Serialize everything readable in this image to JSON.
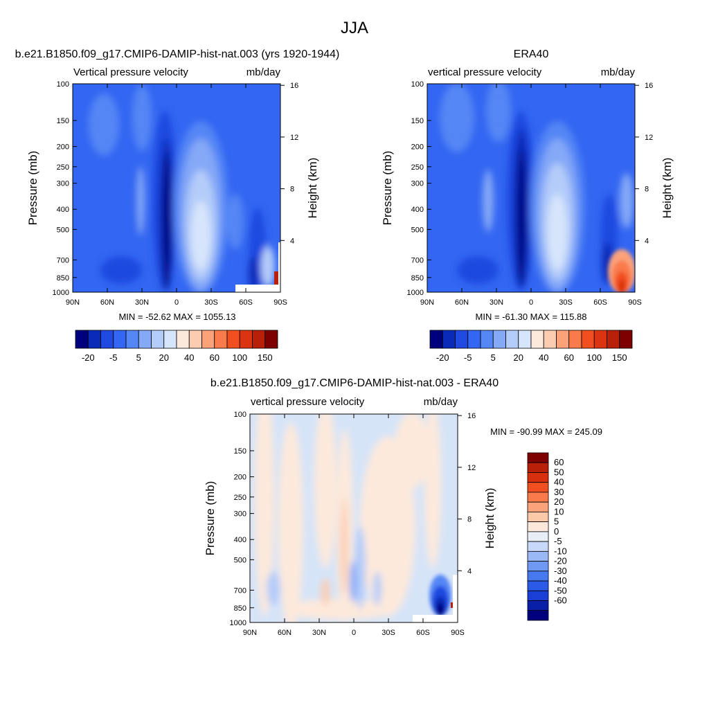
{
  "page": {
    "title": "JJA"
  },
  "colors": {
    "frame": "#000000",
    "background": "#ffffff",
    "blue_scale": [
      "#00007f",
      "#0a2bb8",
      "#1f49e0",
      "#3366f2",
      "#5586f5",
      "#85a8f7",
      "#b4ccf9",
      "#d7e5fb"
    ],
    "red_scale": [
      "#fde9db",
      "#fcccb0",
      "#fba27a",
      "#f97a4b",
      "#f14f20",
      "#dc3410",
      "#b8200a",
      "#7f0000"
    ],
    "diff_scale": [
      "#00007f",
      "#0a1fa8",
      "#1a3fd6",
      "#2c5ae8",
      "#4678ef",
      "#6f98f3",
      "#9ab8f6",
      "#c7d8fa",
      "#e8eef6",
      "#fde9db",
      "#fcc9a8",
      "#fba27a",
      "#f97a4b",
      "#f14f20",
      "#d8300e",
      "#b8200a",
      "#7f0000"
    ]
  },
  "chart_data": [
    {
      "type": "heatmap",
      "title": "b.e21.B1850.f09_g17.CMIP6-DAMIP-hist-nat.003 (yrs 1920-1944)",
      "left_label": "Vertical pressure velocity",
      "right_label": "mb/day",
      "ylabel": "Pressure (mb)",
      "right_ylabel": "Height (km)",
      "xticks": [
        "90N",
        "60N",
        "30N",
        "0",
        "30S",
        "60S",
        "90S"
      ],
      "yticks": [
        "100",
        "150",
        "200",
        "250",
        "300",
        "400",
        "500",
        "700",
        "850",
        "1000"
      ],
      "right_yticks": [
        "16",
        "12",
        "8",
        "4"
      ],
      "stats": "MIN = -52.62  MAX = 1055.13",
      "colorbar_labels": [
        "-20",
        "-5",
        "5",
        "20",
        "40",
        "60",
        "100",
        "150"
      ],
      "colorbar_orientation": "horizontal",
      "ylim": [
        1000,
        100
      ],
      "xlim": [
        90,
        -90
      ],
      "min": -52.62,
      "max": 1055.13
    },
    {
      "type": "heatmap",
      "title": "ERA40",
      "left_label": "vertical pressure velocity",
      "right_label": "mb/day",
      "ylabel": "Pressure (mb)",
      "right_ylabel": "Height (km)",
      "xticks": [
        "90N",
        "60N",
        "30N",
        "0",
        "30S",
        "60S",
        "90S"
      ],
      "yticks": [
        "100",
        "150",
        "200",
        "250",
        "300",
        "400",
        "500",
        "700",
        "850",
        "1000"
      ],
      "right_yticks": [
        "16",
        "12",
        "8",
        "4"
      ],
      "stats": "MIN = -61.30  MAX = 115.88",
      "colorbar_labels": [
        "-20",
        "-5",
        "5",
        "20",
        "40",
        "60",
        "100",
        "150"
      ],
      "colorbar_orientation": "horizontal",
      "ylim": [
        1000,
        100
      ],
      "xlim": [
        90,
        -90
      ],
      "min": -61.3,
      "max": 115.88
    },
    {
      "type": "heatmap",
      "title": "b.e21.B1850.f09_g17.CMIP6-DAMIP-hist-nat.003 - ERA40",
      "left_label": "vertical pressure velocity",
      "right_label": "mb/day",
      "ylabel": "Pressure (mb)",
      "right_ylabel": "Height (km)",
      "xticks": [
        "90N",
        "60N",
        "30N",
        "0",
        "30S",
        "60S",
        "90S"
      ],
      "yticks": [
        "100",
        "150",
        "200",
        "250",
        "300",
        "400",
        "500",
        "700",
        "850",
        "1000"
      ],
      "right_yticks": [
        "16",
        "12",
        "8",
        "4"
      ],
      "stats": "MIN = -90.99  MAX = 245.09",
      "colorbar_labels": [
        "60",
        "50",
        "40",
        "30",
        "20",
        "10",
        "5",
        "0",
        "-5",
        "-10",
        "-20",
        "-30",
        "-40",
        "-50",
        "-60"
      ],
      "colorbar_orientation": "vertical",
      "ylim": [
        1000,
        100
      ],
      "xlim": [
        90,
        -90
      ],
      "min": -90.99,
      "max": 245.09
    }
  ]
}
